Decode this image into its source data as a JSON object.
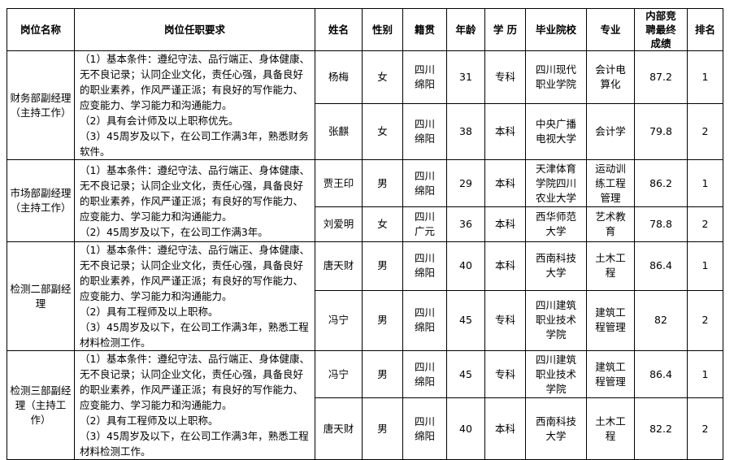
{
  "headers": [
    "岗位名称",
    "岗位任职要求",
    "姓名",
    "性别",
    "籍贯",
    "年龄",
    "学 历",
    "毕业院校",
    "专业",
    "内部竞聘最终成绩",
    "排名"
  ],
  "groups": [
    {
      "position": "财务部副经理（主持工作）",
      "requirements": [
        "（1）基本条件：遵纪守法、品行端正、身体健康、无不良记录；认同企业文化，责任心强，具备良好的职业素养，作风严谨正派；有良好的写作能力、应变能力、学习能力和沟通能力。",
        "（2）具有会计师及以上职称优先。",
        "（3）45周岁及以下，在公司工作满3年，熟悉财务软件。"
      ],
      "candidates": [
        {
          "name": "杨梅",
          "gender": "女",
          "hometown": "四川绵阳",
          "age": "31",
          "education": "专科",
          "school": "四川现代职业学院",
          "major": "会计电算化",
          "score": "87.2",
          "rank": "1"
        },
        {
          "name": "张麒",
          "gender": "女",
          "hometown": "四川绵阳",
          "age": "38",
          "education": "本科",
          "school": "中央广播电视大学",
          "major": "会计学",
          "score": "79.8",
          "rank": "2"
        }
      ]
    },
    {
      "position": "市场部副经理（主持工作）",
      "requirements": [
        "（1）基本条件：遵纪守法、品行端正、身体健康、无不良记录；认同企业文化，责任心强，具备良好的职业素养，作风严谨正派；有良好的写作能力、应变能力、学习能力和沟通能力。",
        "（2）45周岁及以下，在公司工作满3年。"
      ],
      "candidates": [
        {
          "name": "贾王印",
          "gender": "男",
          "hometown": "四川绵阳",
          "age": "29",
          "education": "本科",
          "school": "天津体育学院四川农业大学",
          "major": "运动训练工程管理",
          "score": "86.2",
          "rank": "1"
        },
        {
          "name": "刘爱明",
          "gender": "女",
          "hometown": "四川广元",
          "age": "36",
          "education": "本科",
          "school": "西华师范大学",
          "major": "艺术教育",
          "score": "78.8",
          "rank": "2"
        }
      ]
    },
    {
      "position": "检测二部副经理",
      "requirements": [
        "（1）基本条件：遵纪守法、品行端正、身体健康、无不良记录；认同企业文化，责任心强，具备良好的职业素养，作风严谨正派；有良好的写作能力、应变能力、学习能力和沟通能力。",
        "（2）具有工程师及以上职称。",
        "（3）45周岁及以下，在公司工作满3年，熟悉工程材料检测工作。"
      ],
      "candidates": [
        {
          "name": "唐天财",
          "gender": "男",
          "hometown": "四川绵阳",
          "age": "40",
          "education": "本科",
          "school": "西南科技大学",
          "major": "土木工程",
          "score": "86.4",
          "rank": "1"
        },
        {
          "name": "冯宁",
          "gender": "男",
          "hometown": "四川绵阳",
          "age": "45",
          "education": "专科",
          "school": "四川建筑职业技术学院",
          "major": "建筑工程管理",
          "score": "82",
          "rank": "2"
        }
      ]
    },
    {
      "position": "检测三部副经理（主持工作）",
      "requirements": [
        "（1）基本条件：遵纪守法、品行端正、身体健康、无不良记录；认同企业文化，责任心强，具备良好的职业素养，作风严谨正派；有良好的写作能力、应变能力、学习能力和沟通能力。",
        "（2）具有工程师及以上职称。",
        "（3）45周岁及以下，在公司工作满3年，熟悉工程材料检测工作。"
      ],
      "candidates": [
        {
          "name": "冯宁",
          "gender": "男",
          "hometown": "四川绵阳",
          "age": "45",
          "education": "专科",
          "school": "四川建筑职业技术学院",
          "major": "建筑工程管理",
          "score": "86.4",
          "rank": "1"
        },
        {
          "name": "唐天财",
          "gender": "男",
          "hometown": "四川绵阳",
          "age": "40",
          "education": "本科",
          "school": "西南科技大学",
          "major": "土木工程",
          "score": "82.2",
          "rank": "2"
        }
      ]
    }
  ]
}
